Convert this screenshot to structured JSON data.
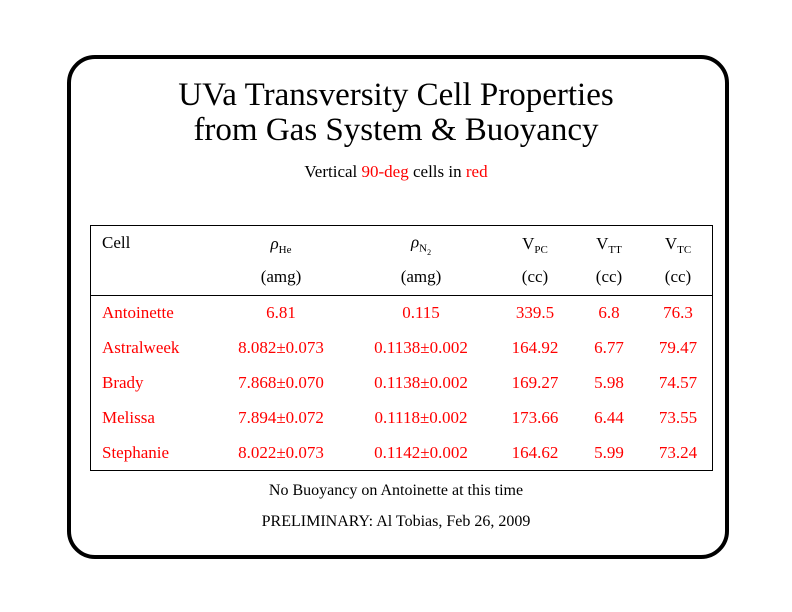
{
  "header": {
    "title": [
      "UVa Transversity Cell Properties",
      "from Gas System & Buoyancy"
    ],
    "subtitle": [
      "Vertical",
      "90-deg",
      "cells in",
      "red"
    ]
  },
  "table": {
    "columns": [
      {
        "symbol": "Cell"
      },
      {
        "symbol": "ρ",
        "sub": "He",
        "unit": "(amg)"
      },
      {
        "symbol": "ρ",
        "sub": "N",
        "subsub": "2",
        "unit": "(amg)"
      },
      {
        "symbol": "V",
        "sub": "PC",
        "unit": "(cc)"
      },
      {
        "symbol": "V",
        "sub": "TT",
        "unit": "(cc)"
      },
      {
        "symbol": "V",
        "sub": "TC",
        "unit": "(cc)"
      }
    ],
    "rows": [
      [
        "Antoinette",
        "6.81",
        "0.115",
        "339.5",
        "6.8",
        "76.3"
      ],
      [
        "Astralweek",
        "8.082±0.073",
        "0.1138±0.002",
        "164.92",
        "6.77",
        "79.47"
      ],
      [
        "Brady",
        "7.868±0.070",
        "0.1138±0.002",
        "169.27",
        "5.98",
        "74.57"
      ],
      [
        "Melissa",
        "7.894±0.072",
        "0.1118±0.002",
        "173.66",
        "6.44",
        "73.55"
      ],
      [
        "Stephanie",
        "8.022±0.073",
        "0.1142±0.002",
        "164.62",
        "5.99",
        "73.24"
      ]
    ]
  },
  "notes": [
    "No Buoyancy on Antoinette at this time",
    "PRELIMINARY: Al Tobias, Feb 26, 2009"
  ]
}
